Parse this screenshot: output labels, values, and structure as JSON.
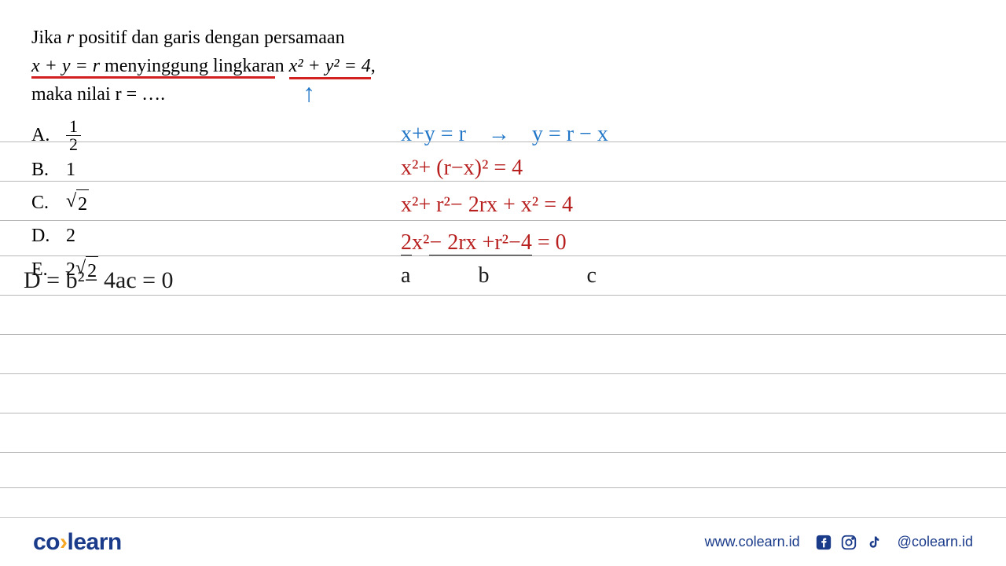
{
  "question": {
    "line1_prefix": "Jika ",
    "line1_var": "r",
    "line1_rest": " positif dan garis dengan persamaan",
    "line2_eq1": "x + y = r",
    "line2_mid": " menyinggung lingkara",
    "line2_mid_n": "n ",
    "line2_eq2": "x² + y² = 4",
    "line2_comma": ",",
    "line3": "maka nilai r = …."
  },
  "options": {
    "A": {
      "label": "A.",
      "num": "1",
      "den": "2"
    },
    "B": {
      "label": "B.",
      "value": "1"
    },
    "C": {
      "label": "C.",
      "sqrt_val": "2"
    },
    "D": {
      "label": "D.",
      "value": "2"
    },
    "E": {
      "label": "E.",
      "coef": "2",
      "sqrt_val": "2"
    }
  },
  "arrow": "↑",
  "work": {
    "line1_a": "x+y = r",
    "line1_arrow": "→",
    "line1_b": "y = r − x",
    "line2": "x²+ (r−x)² = 4",
    "line3": "x²+ r²− 2rx + x² = 4",
    "line4_a": "2",
    "line4_b": "x²",
    "line4_c": "− 2rx",
    "line4_d": " +r²−4",
    "line4_e": " = 0",
    "abc_a": "a",
    "abc_b": "b",
    "abc_c": "c",
    "disc": "D = b²− 4ac = 0"
  },
  "rules": {
    "positions": [
      180,
      230,
      280,
      325,
      375,
      425,
      475,
      525,
      575,
      620
    ]
  },
  "footer": {
    "logo_co": "co",
    "logo_dot": "›",
    "logo_learn": "learn",
    "url": "www.colearn.id",
    "handle": "@colearn.id"
  },
  "colors": {
    "blue_hw": "#2176c7",
    "red_hw": "#b82020",
    "black_hw": "#1a1a1a",
    "red_underline": "#d32020",
    "brand_blue": "#1a3a8a",
    "rule_gray": "#b8b8b8"
  }
}
